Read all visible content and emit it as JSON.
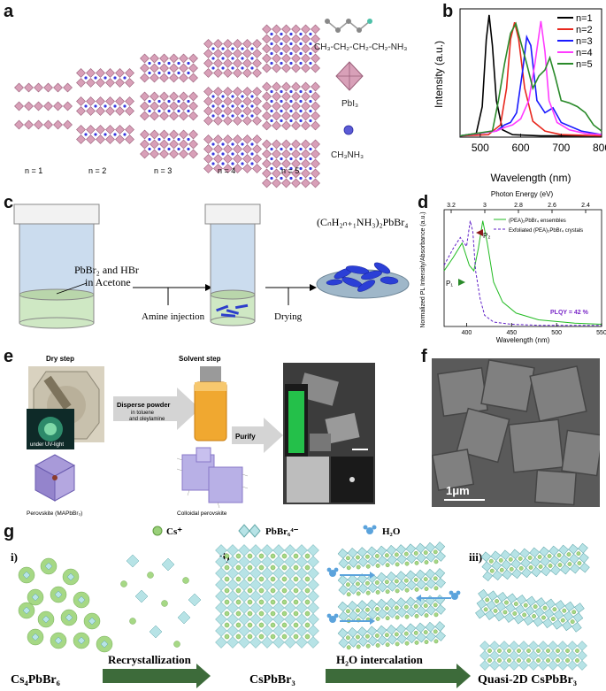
{
  "panel_labels": {
    "a": "a",
    "b": "b",
    "c": "c",
    "d": "d",
    "e": "e",
    "f": "f",
    "g": "g"
  },
  "panel_a": {
    "n_labels": [
      "n = 1",
      "n = 2",
      "n = 3",
      "n = 4",
      "n = 5"
    ],
    "formula": "CH₃-CH₂-CH₂-CH₂-NH₃",
    "pbi3": "PbI₃",
    "ch3nh3": "CH₃NH₃"
  },
  "panel_b": {
    "chart_data": {
      "type": "line",
      "xlabel": "Wavelength (nm)",
      "ylabel": "Intensity (a.u.)",
      "xlim": [
        450,
        800
      ],
      "xticks": [
        500,
        600,
        700,
        800
      ],
      "series": [
        {
          "name": "n=1",
          "color": "#000000",
          "x": [
            450,
            490,
            505,
            515,
            522,
            530,
            540,
            555,
            580,
            650,
            800
          ],
          "y": [
            0.01,
            0.03,
            0.25,
            0.8,
            1.0,
            0.75,
            0.3,
            0.06,
            0.02,
            0.01,
            0.01
          ]
        },
        {
          "name": "n=2",
          "color": "#e8281e",
          "x": [
            450,
            520,
            550,
            565,
            575,
            585,
            595,
            610,
            630,
            660,
            700,
            800
          ],
          "y": [
            0.01,
            0.02,
            0.1,
            0.4,
            0.8,
            0.94,
            0.8,
            0.4,
            0.13,
            0.05,
            0.02,
            0.01
          ]
        },
        {
          "name": "n=3",
          "color": "#1a1aff",
          "x": [
            450,
            540,
            560,
            575,
            590,
            605,
            615,
            625,
            640,
            660,
            680,
            700,
            750,
            800
          ],
          "y": [
            0.01,
            0.05,
            0.1,
            0.12,
            0.2,
            0.55,
            0.82,
            0.75,
            0.3,
            0.2,
            0.24,
            0.12,
            0.05,
            0.02
          ]
        },
        {
          "name": "n=4",
          "color": "#ff3cff",
          "x": [
            450,
            540,
            560,
            580,
            600,
            620,
            635,
            650,
            660,
            670,
            690,
            720,
            760,
            800
          ],
          "y": [
            0.01,
            0.05,
            0.08,
            0.1,
            0.15,
            0.3,
            0.6,
            0.95,
            0.7,
            0.3,
            0.12,
            0.06,
            0.03,
            0.02
          ]
        },
        {
          "name": "n=5",
          "color": "#2a8a2a",
          "x": [
            450,
            530,
            545,
            560,
            575,
            588,
            600,
            615,
            630,
            645,
            660,
            672,
            685,
            700,
            720,
            740,
            760,
            780,
            800
          ],
          "y": [
            0.01,
            0.05,
            0.3,
            0.6,
            0.85,
            0.93,
            0.78,
            0.6,
            0.4,
            0.5,
            0.55,
            0.65,
            0.5,
            0.3,
            0.28,
            0.25,
            0.2,
            0.1,
            0.05
          ]
        }
      ]
    }
  },
  "panel_c": {
    "reagents": "PbBr₂ and HBr",
    "solvent": "in Acetone",
    "step1": "Amine injection",
    "step2": "Drying",
    "product": "(CₙH₂ₙ₊₁NH₃)₂PbBr₄"
  },
  "panel_d": {
    "chart_data": {
      "type": "line",
      "title": "Photon Energy (eV)",
      "xlabel": "Wavelength (nm)",
      "ylabel": "Normalized PL Intensity/Absorbance (a.u.)",
      "xlim": [
        375,
        550
      ],
      "xticks": [
        400,
        450,
        500,
        550
      ],
      "top_ticks": [
        "3.2",
        "3",
        "2.8",
        "2.6",
        "2.4"
      ],
      "series": [
        {
          "name": "(PEA)₂PbBr₄ ensembles",
          "color": "#22bb22",
          "x": [
            375,
            385,
            395,
            403,
            408,
            413,
            418,
            423,
            430,
            440,
            455,
            480,
            520,
            550
          ],
          "y": [
            0.5,
            0.62,
            0.75,
            0.55,
            0.5,
            0.7,
            0.95,
            0.75,
            0.4,
            0.22,
            0.12,
            0.06,
            0.03,
            0.02
          ]
        },
        {
          "name": "Exfoliated (PEA)₂PbBr₄ crystals",
          "color": "#6020c8",
          "x": [
            375,
            385,
            393,
            400,
            404,
            407,
            410,
            415,
            420,
            430,
            450,
            480,
            550
          ],
          "y": [
            0.55,
            0.7,
            0.8,
            0.72,
            0.95,
            0.85,
            0.5,
            0.25,
            0.1,
            0.04,
            0.02,
            0.01,
            0.01
          ]
        }
      ],
      "annotations": [
        "P₁",
        "P₂",
        "PLQY = 42 %"
      ]
    }
  },
  "panel_e": {
    "dry_step": "Dry step",
    "uv_label": "under UV-light",
    "disperse": "Disperse  powder",
    "disperse_sub1": "in toluene",
    "disperse_sub2": "and oleylamine",
    "solvent_step": "Solvent step",
    "purify": "Purify",
    "perovskite": "Perovskite (MAPbBr₃)",
    "colloidal": "Colloidal perovskite"
  },
  "panel_f": {
    "scale": "1μm"
  },
  "panel_g": {
    "legend_cs": "Cs⁺",
    "legend_pbbr": "PbBr₆⁴⁻",
    "legend_h2o": "H₂O",
    "roman": [
      "i)",
      "ii)",
      "iii)"
    ],
    "label_cs4": "Cs₄PbBr₆",
    "recryst": "Recrystallization",
    "label_cspbbr3": "CsPbBr₃",
    "h2o_int": "H₂O intercalation",
    "label_quasi": "Quasi-2D CsPbBr₃"
  },
  "colors": {
    "octa": "#d8a0b8",
    "octa_edge": "#9a5f7a",
    "blue_dot": "#3a3ae0",
    "green_arrow": "#3d6b3a",
    "water": "#5ba3dc"
  }
}
